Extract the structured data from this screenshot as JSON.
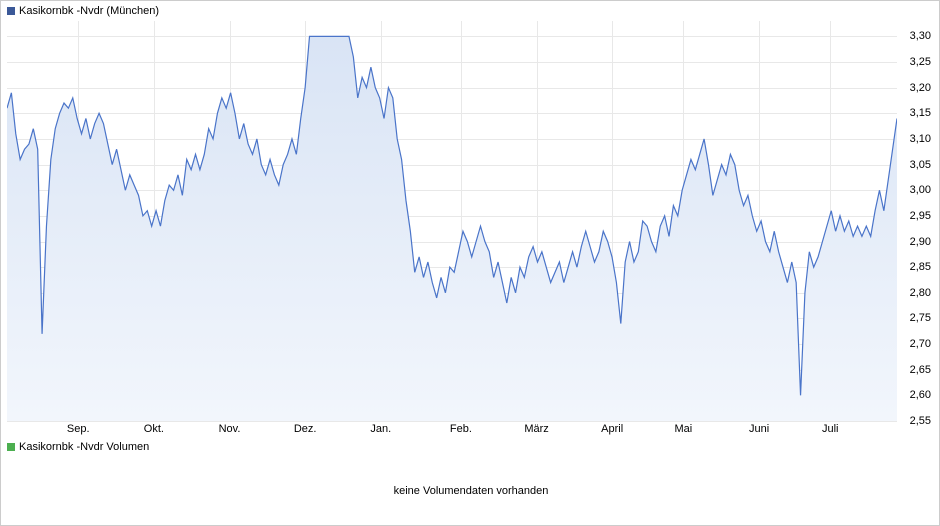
{
  "price_chart": {
    "type": "area",
    "title": "Kasikornbk -Nvdr (München)",
    "title_swatch_color": "#3b5998",
    "line_color": "#4a74c9",
    "fill_top_color": "#d9e4f5",
    "fill_bottom_color": "#f2f6fc",
    "line_width": 1.2,
    "background_color": "#ffffff",
    "grid_color": "#e8e8e8",
    "border_color": "#cccccc",
    "ylim": [
      2.55,
      3.33
    ],
    "yticks": [
      2.55,
      2.6,
      2.65,
      2.7,
      2.75,
      2.8,
      2.85,
      2.9,
      2.95,
      3.0,
      3.05,
      3.1,
      3.15,
      3.2,
      3.25,
      3.3
    ],
    "ytick_labels": [
      "2,55",
      "2,60",
      "2,65",
      "2,70",
      "2,75",
      "2,80",
      "2,85",
      "2,90",
      "2,95",
      "3,00",
      "3,05",
      "3,10",
      "3,15",
      "3,20",
      "3,25",
      "3,30"
    ],
    "x_months": [
      "Sep.",
      "Okt.",
      "Nov.",
      "Dez.",
      "Jan.",
      "Feb.",
      "März",
      "April",
      "Mai",
      "Juni",
      "Juli"
    ],
    "x_month_positions": [
      0.08,
      0.165,
      0.25,
      0.335,
      0.42,
      0.51,
      0.595,
      0.68,
      0.76,
      0.845,
      0.925
    ],
    "label_fontsize": 11,
    "values": [
      3.16,
      3.19,
      3.11,
      3.06,
      3.08,
      3.09,
      3.12,
      3.08,
      2.72,
      2.93,
      3.06,
      3.12,
      3.15,
      3.17,
      3.16,
      3.18,
      3.14,
      3.11,
      3.14,
      3.1,
      3.13,
      3.15,
      3.13,
      3.09,
      3.05,
      3.08,
      3.04,
      3.0,
      3.03,
      3.01,
      2.99,
      2.95,
      2.96,
      2.93,
      2.96,
      2.93,
      2.98,
      3.01,
      3.0,
      3.03,
      2.99,
      3.06,
      3.04,
      3.07,
      3.04,
      3.07,
      3.12,
      3.1,
      3.15,
      3.18,
      3.16,
      3.19,
      3.15,
      3.1,
      3.13,
      3.09,
      3.07,
      3.1,
      3.05,
      3.03,
      3.06,
      3.03,
      3.01,
      3.05,
      3.07,
      3.1,
      3.07,
      3.14,
      3.2,
      3.3,
      3.3,
      3.3,
      3.3,
      3.3,
      3.3,
      3.3,
      3.3,
      3.3,
      3.3,
      3.26,
      3.18,
      3.22,
      3.2,
      3.24,
      3.2,
      3.18,
      3.14,
      3.2,
      3.18,
      3.1,
      3.06,
      2.98,
      2.92,
      2.84,
      2.87,
      2.83,
      2.86,
      2.82,
      2.79,
      2.83,
      2.8,
      2.85,
      2.84,
      2.88,
      2.92,
      2.9,
      2.87,
      2.9,
      2.93,
      2.9,
      2.88,
      2.83,
      2.86,
      2.82,
      2.78,
      2.83,
      2.8,
      2.85,
      2.83,
      2.87,
      2.89,
      2.86,
      2.88,
      2.85,
      2.82,
      2.84,
      2.86,
      2.82,
      2.85,
      2.88,
      2.85,
      2.89,
      2.92,
      2.89,
      2.86,
      2.88,
      2.92,
      2.9,
      2.87,
      2.82,
      2.74,
      2.86,
      2.9,
      2.86,
      2.88,
      2.94,
      2.93,
      2.9,
      2.88,
      2.93,
      2.95,
      2.91,
      2.97,
      2.95,
      3.0,
      3.03,
      3.06,
      3.04,
      3.07,
      3.1,
      3.05,
      2.99,
      3.02,
      3.05,
      3.03,
      3.07,
      3.05,
      3.0,
      2.97,
      2.99,
      2.95,
      2.92,
      2.94,
      2.9,
      2.88,
      2.92,
      2.88,
      2.85,
      2.82,
      2.86,
      2.82,
      2.6,
      2.8,
      2.88,
      2.85,
      2.87,
      2.9,
      2.93,
      2.96,
      2.92,
      2.95,
      2.92,
      2.94,
      2.91,
      2.93,
      2.91,
      2.93,
      2.91,
      2.96,
      3.0,
      2.96,
      3.02,
      3.08,
      3.14
    ]
  },
  "volume_chart": {
    "title": "Kasikornbk -Nvdr Volumen",
    "title_swatch_color": "#4caf50",
    "message": "keine Volumendaten vorhanden"
  }
}
